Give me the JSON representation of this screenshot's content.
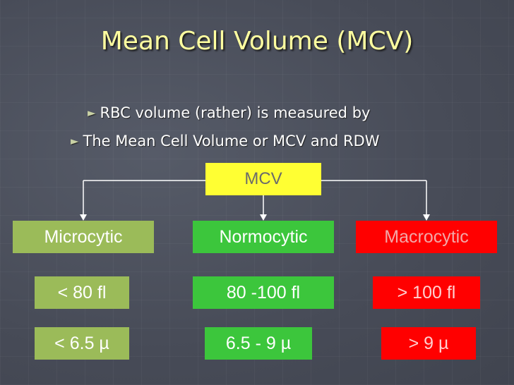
{
  "slide": {
    "title": "Mean Cell Volume (MCV)",
    "bullets": [
      "RBC volume (rather) is measured by",
      "The Mean Cell Volume or MCV and RDW"
    ]
  },
  "diagram": {
    "root": "MCV",
    "categories": [
      {
        "name": "Microcytic",
        "volume": "< 80 fl",
        "diameter": "< 6.5 µ"
      },
      {
        "name": "Normocytic",
        "volume": " 80 -100 fl",
        "diameter": "6.5 - 9 µ"
      },
      {
        "name": "Macrocytic",
        "volume": "> 100 fl",
        "diameter": "> 9 µ"
      }
    ]
  },
  "colors": {
    "background": "#4a4f5c",
    "title": "#ffffa0",
    "root_box": "#ffff33",
    "microcytic": "#9bbb59",
    "normocytic": "#3cc63c",
    "macrocytic": "#ff0000"
  },
  "icons": {
    "bullet": "right-triangle-icon"
  }
}
